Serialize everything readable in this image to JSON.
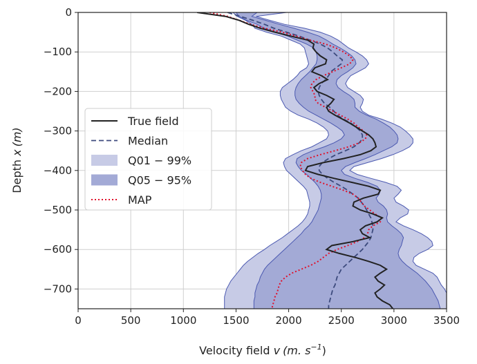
{
  "chart_data": {
    "type": "line",
    "xlabel_text": "Velocity field ",
    "xlabel_var": "v",
    "xlabel_units": "(m. s",
    "xlabel_exp": "−1",
    "xlabel_close": ")",
    "ylabel_text": "Depth ",
    "ylabel_var": "x",
    "ylabel_units": "(m)",
    "xlim": [
      0,
      3500
    ],
    "ylim": [
      -750,
      0
    ],
    "xticks": [
      0,
      500,
      1000,
      1500,
      2000,
      2500,
      3000,
      3500
    ],
    "yticks": [
      0,
      -100,
      -200,
      -300,
      -400,
      -500,
      -600,
      -700
    ],
    "xtick_labels": [
      "0",
      "500",
      "1000",
      "1500",
      "2000",
      "2500",
      "3000",
      "3500"
    ],
    "ytick_labels": [
      "0",
      "−100",
      "−200",
      "−300",
      "−400",
      "−500",
      "−600",
      "−700"
    ],
    "grid": true,
    "legend_position": "center-left",
    "colors": {
      "true_field": "#222222",
      "median": "#3c4a7d",
      "q01_99": "#c7cbe6",
      "q05_95": "#a3aad6",
      "band_edge": "#4a58b0",
      "map": "#e0102a"
    },
    "depth": [
      0,
      -10,
      -20,
      -30,
      -40,
      -50,
      -60,
      -70,
      -80,
      -90,
      -100,
      -110,
      -120,
      -130,
      -140,
      -150,
      -160,
      -170,
      -180,
      -190,
      -200,
      -210,
      -220,
      -230,
      -240,
      -250,
      -260,
      -270,
      -280,
      -290,
      -300,
      -310,
      -320,
      -330,
      -340,
      -350,
      -360,
      -370,
      -380,
      -390,
      -400,
      -410,
      -420,
      -430,
      -440,
      -450,
      -460,
      -470,
      -480,
      -490,
      -500,
      -510,
      -520,
      -530,
      -540,
      -550,
      -560,
      -570,
      -580,
      -590,
      -600,
      -610,
      -620,
      -630,
      -640,
      -650,
      -660,
      -670,
      -680,
      -690,
      -700,
      -710,
      -720,
      -730,
      -740,
      -750
    ],
    "series": [
      {
        "name": "True field",
        "values": [
          1130,
          1400,
          1530,
          1620,
          1730,
          1870,
          2020,
          2180,
          2240,
          2230,
          2260,
          2300,
          2360,
          2350,
          2250,
          2220,
          2310,
          2370,
          2290,
          2240,
          2270,
          2360,
          2430,
          2400,
          2360,
          2380,
          2440,
          2510,
          2580,
          2640,
          2700,
          2760,
          2800,
          2820,
          2830,
          2780,
          2680,
          2520,
          2330,
          2180,
          2160,
          2280,
          2430,
          2600,
          2760,
          2870,
          2850,
          2710,
          2620,
          2610,
          2680,
          2800,
          2890,
          2840,
          2730,
          2680,
          2700,
          2770,
          2610,
          2410,
          2360,
          2480,
          2630,
          2760,
          2870,
          2930,
          2870,
          2820,
          2850,
          2910,
          2870,
          2820,
          2840,
          2890,
          2960,
          2990
        ]
      },
      {
        "name": "Median",
        "values": [
          1420,
          1540,
          1660,
          1770,
          1860,
          1980,
          2100,
          2200,
          2300,
          2370,
          2420,
          2460,
          2510,
          2500,
          2450,
          2400,
          2380,
          2350,
          2310,
          2290,
          2280,
          2290,
          2310,
          2340,
          2390,
          2430,
          2460,
          2520,
          2590,
          2640,
          2680,
          2700,
          2700,
          2670,
          2620,
          2540,
          2450,
          2380,
          2320,
          2290,
          2290,
          2320,
          2370,
          2430,
          2500,
          2560,
          2610,
          2660,
          2690,
          2720,
          2740,
          2760,
          2780,
          2790,
          2800,
          2800,
          2790,
          2780,
          2760,
          2730,
          2700,
          2660,
          2620,
          2580,
          2540,
          2500,
          2480,
          2460,
          2450,
          2440,
          2420,
          2410,
          2400,
          2390,
          2380,
          2380
        ]
      },
      {
        "name": "Q01 − 99% low",
        "values": [
          1470,
          1510,
          1590,
          1650,
          1680,
          1790,
          1930,
          2020,
          2110,
          2150,
          2160,
          2170,
          2180,
          2190,
          2170,
          2110,
          2080,
          2040,
          1990,
          1940,
          1920,
          1920,
          1930,
          1950,
          1970,
          2020,
          2090,
          2190,
          2270,
          2330,
          2370,
          2380,
          2360,
          2290,
          2220,
          2120,
          2040,
          1970,
          1950,
          1960,
          1980,
          2020,
          2060,
          2100,
          2140,
          2170,
          2180,
          2190,
          2200,
          2200,
          2190,
          2180,
          2160,
          2130,
          2090,
          2040,
          1990,
          1940,
          1880,
          1820,
          1770,
          1710,
          1660,
          1610,
          1570,
          1540,
          1510,
          1480,
          1450,
          1430,
          1410,
          1400,
          1390,
          1390,
          1390,
          1390
        ]
      },
      {
        "name": "Q01 − 99% high",
        "values": [
          1980,
          1690,
          1820,
          1960,
          2150,
          2300,
          2400,
          2470,
          2520,
          2570,
          2640,
          2700,
          2740,
          2760,
          2730,
          2660,
          2590,
          2560,
          2540,
          2560,
          2620,
          2680,
          2710,
          2700,
          2680,
          2700,
          2760,
          2880,
          2980,
          3060,
          3110,
          3150,
          3180,
          3180,
          3150,
          3080,
          2990,
          2880,
          2750,
          2620,
          2580,
          2650,
          2780,
          2920,
          3030,
          3070,
          3040,
          3000,
          3020,
          3090,
          3140,
          3130,
          3060,
          3020,
          3090,
          3180,
          3260,
          3320,
          3360,
          3370,
          3320,
          3240,
          3190,
          3180,
          3210,
          3290,
          3370,
          3410,
          3430,
          3450,
          3480,
          3500,
          3500,
          3500,
          3500,
          3500
        ]
      },
      {
        "name": "Q05 − 95% low",
        "values": [
          1500,
          1530,
          1600,
          1700,
          1770,
          1870,
          1990,
          2080,
          2170,
          2240,
          2260,
          2270,
          2270,
          2260,
          2230,
          2200,
          2160,
          2120,
          2090,
          2070,
          2060,
          2060,
          2070,
          2100,
          2140,
          2190,
          2260,
          2330,
          2400,
          2460,
          2510,
          2530,
          2500,
          2430,
          2340,
          2230,
          2140,
          2080,
          2070,
          2090,
          2120,
          2170,
          2210,
          2250,
          2280,
          2300,
          2310,
          2310,
          2300,
          2290,
          2280,
          2260,
          2240,
          2220,
          2190,
          2150,
          2120,
          2080,
          2040,
          2000,
          1960,
          1920,
          1880,
          1840,
          1800,
          1770,
          1750,
          1730,
          1720,
          1700,
          1690,
          1680,
          1680,
          1670,
          1670,
          1670
        ]
      },
      {
        "name": "Q05 − 95% high",
        "values": [
          1700,
          1650,
          1780,
          1910,
          2050,
          2180,
          2290,
          2360,
          2420,
          2490,
          2550,
          2600,
          2630,
          2640,
          2610,
          2560,
          2500,
          2460,
          2450,
          2470,
          2520,
          2580,
          2620,
          2630,
          2630,
          2670,
          2740,
          2830,
          2900,
          2960,
          3000,
          3030,
          3040,
          3030,
          2980,
          2900,
          2820,
          2730,
          2630,
          2540,
          2500,
          2530,
          2630,
          2750,
          2840,
          2870,
          2860,
          2830,
          2850,
          2900,
          2930,
          2940,
          2930,
          2940,
          2980,
          3030,
          3070,
          3090,
          3080,
          3070,
          3050,
          3040,
          3050,
          3080,
          3120,
          3170,
          3220,
          3260,
          3300,
          3330,
          3360,
          3380,
          3400,
          3420,
          3430,
          3440
        ]
      },
      {
        "name": "MAP",
        "values": [
          1250,
          1420,
          1530,
          1640,
          1770,
          1940,
          2070,
          2200,
          2350,
          2450,
          2520,
          2580,
          2610,
          2580,
          2500,
          2420,
          2330,
          2260,
          2220,
          2210,
          2230,
          2250,
          2250,
          2280,
          2350,
          2420,
          2490,
          2560,
          2620,
          2660,
          2710,
          2740,
          2730,
          2670,
          2570,
          2440,
          2300,
          2180,
          2120,
          2110,
          2130,
          2160,
          2210,
          2300,
          2410,
          2520,
          2610,
          2660,
          2690,
          2720,
          2770,
          2820,
          2880,
          2870,
          2800,
          2760,
          2750,
          2720,
          2650,
          2560,
          2460,
          2380,
          2330,
          2280,
          2210,
          2120,
          2030,
          1970,
          1930,
          1910,
          1900,
          1890,
          1870,
          1860,
          1850,
          1840
        ]
      }
    ],
    "legend": [
      {
        "label": "True field",
        "style": "solid"
      },
      {
        "label": "Median",
        "style": "dashed"
      },
      {
        "label": "Q01 − 99%",
        "style": "fill-light"
      },
      {
        "label": "Q05 − 95%",
        "style": "fill-dark"
      },
      {
        "label": "MAP",
        "style": "dotted"
      }
    ]
  }
}
